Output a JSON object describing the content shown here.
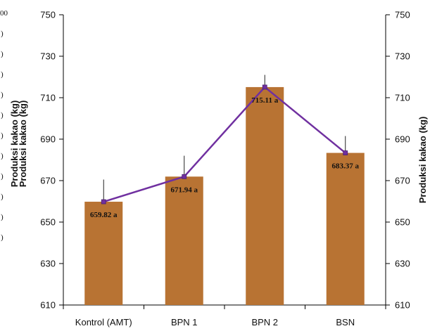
{
  "chart_data": {
    "type": "bar",
    "categories": [
      "Kontrol (AMT)",
      "BPN 1",
      "BPN 2",
      "BSN"
    ],
    "series": [
      {
        "type": "bar",
        "values": [
          659.82,
          671.94,
          715.11,
          683.37
        ],
        "color": "#b87333"
      },
      {
        "type": "line",
        "values": [
          659.82,
          671.94,
          715.11,
          683.37
        ],
        "color": "#7030a0"
      }
    ],
    "error_upper": [
      670.5,
      682.0,
      721.0,
      691.5
    ],
    "data_labels": [
      "659.82 a",
      "671.94 a",
      "715.11 a",
      "683.37 a"
    ],
    "ylim": [
      610,
      750
    ],
    "yticks": [
      610,
      630,
      650,
      670,
      690,
      710,
      730,
      750
    ],
    "y2ticks": [
      610,
      630,
      650,
      670,
      690,
      710,
      730,
      750
    ],
    "ylabel_left_lines": [
      "Produksi kakao (kg)",
      "Produksi kakao (kg)"
    ],
    "ylabel_right": "Produksi kakao (kg)",
    "xlabel": "",
    "grid": false,
    "legend": "none",
    "clipped_left_text": [
      "00",
      ")",
      ")",
      ")",
      ")",
      ")",
      ")",
      ")",
      ")",
      ")",
      ")",
      ")"
    ]
  }
}
